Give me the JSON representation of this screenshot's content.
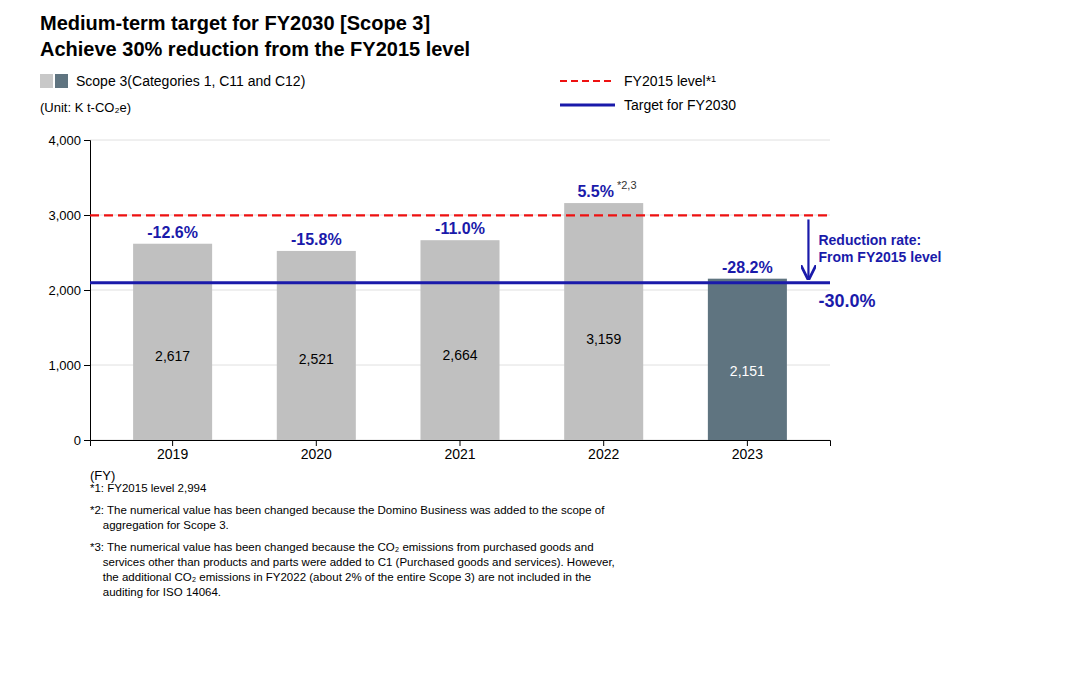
{
  "chart_data": {
    "type": "bar",
    "title": "Medium-term target for FY2030 [Scope 3]",
    "subtitle": "Achieve 30% reduction from the FY2015 level",
    "ylabel": "(Unit: K t-CO₂e)",
    "xlabel": "(FY)",
    "categories": [
      "2019",
      "2020",
      "2021",
      "2022",
      "2023"
    ],
    "series": [
      {
        "name": "Scope 3(Categories 1, C11 and C12)",
        "values": [
          2617,
          2521,
          2664,
          3159,
          2151
        ],
        "value_labels": [
          "2,617",
          "2,521",
          "2,664",
          "3,159",
          "2,151"
        ],
        "colors": [
          "#c0c0c0",
          "#c0c0c0",
          "#c0c0c0",
          "#c0c0c0",
          "#5f7480"
        ],
        "label_colors": [
          "#000000",
          "#000000",
          "#000000",
          "#000000",
          "#ffffff"
        ],
        "legend_colors": [
          "#c8c8c8",
          "#5f7480"
        ]
      }
    ],
    "reference_lines": [
      {
        "name": "FY2015 level*¹",
        "value": 2994,
        "color": "#ee1111",
        "line_style": "dashed"
      },
      {
        "name": "Target for FY2030",
        "value": 2096,
        "color": "#1a1aaa",
        "line_style": "solid"
      }
    ],
    "annotations": [
      {
        "text": "-12.6%",
        "category": "2019"
      },
      {
        "text": "-15.8%",
        "category": "2020"
      },
      {
        "text": "-11.0%",
        "category": "2021"
      },
      {
        "text": "5.5%",
        "category": "2022",
        "superscript": "*2,3"
      },
      {
        "text": "-28.2%",
        "category": "2023"
      }
    ],
    "annotation_color": "#1a1aaa",
    "target_note": {
      "text": "Reduction rate:\nFrom FY2015 level",
      "rate": "-30.0%",
      "color": "#1a1aaa"
    },
    "footnotes": [
      "*1: FY2015 level 2,994",
      "*2: The numerical value has been changed because the Domino Business was added to the scope of\n    aggregation for Scope 3.",
      "*3: The numerical value has been changed because the CO₂ emissions from purchased goods and\n    services other than products and parts were added to C1 (Purchased goods and services). However,\n    the additional CO₂ emissions in FY2022 (about 2% of the entire Scope 3) are not included in the\n    auditing for ISO 14064."
    ],
    "ylim": [
      0,
      4000
    ],
    "yticks": [
      0,
      {
        "value": 1000,
        "label": "1,000"
      },
      {
        "value": 2000,
        "label": "2,000"
      },
      {
        "value": 3000,
        "label": "3,000"
      },
      {
        "value": 4000,
        "label": "4,000"
      }
    ],
    "grid": true,
    "data_labels": true
  }
}
